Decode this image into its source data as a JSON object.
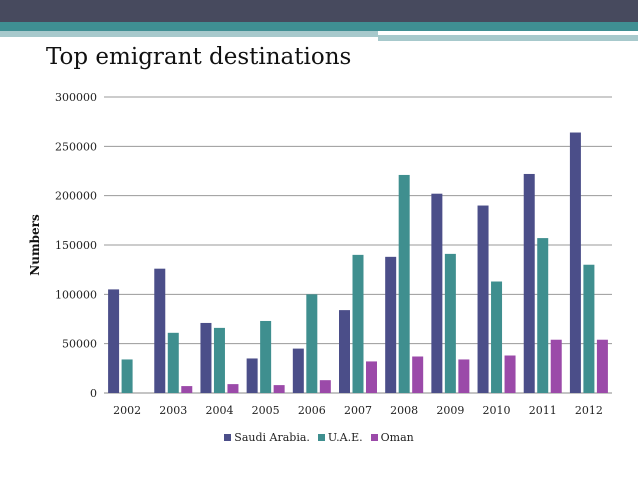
{
  "slide": {
    "title": "Top emigrant destinations",
    "colors": {
      "band_dark": "#474a5e",
      "band_teal": "#3f8f93",
      "band_light": "#a7c9cc"
    }
  },
  "chart_data": {
    "type": "bar",
    "title": "",
    "ylabel": "Numbers",
    "xlabel": "",
    "ylim": [
      0,
      300000
    ],
    "yticks": [
      "0",
      "50000",
      "100000",
      "150000",
      "200000",
      "250000",
      "300000"
    ],
    "grid": true,
    "legend_position": "bottom",
    "categories": [
      "2002",
      "2003",
      "2004",
      "2005",
      "2006",
      "2007",
      "2008",
      "2009",
      "2010",
      "2011",
      "2012"
    ],
    "series": [
      {
        "name": "Saudi Arabia.",
        "color": "#4b4e89",
        "values": [
          105000,
          126000,
          71000,
          35000,
          45000,
          84000,
          138000,
          202000,
          190000,
          222000,
          264000
        ]
      },
      {
        "name": "U.A.E.",
        "color": "#3f8f8f",
        "values": [
          34000,
          61000,
          66000,
          73000,
          100000,
          140000,
          221000,
          141000,
          113000,
          157000,
          130000
        ]
      },
      {
        "name": "Oman",
        "color": "#9b4aa9",
        "values": [
          0,
          7000,
          9000,
          8000,
          13000,
          32000,
          37000,
          34000,
          38000,
          54000,
          54000
        ]
      }
    ]
  }
}
